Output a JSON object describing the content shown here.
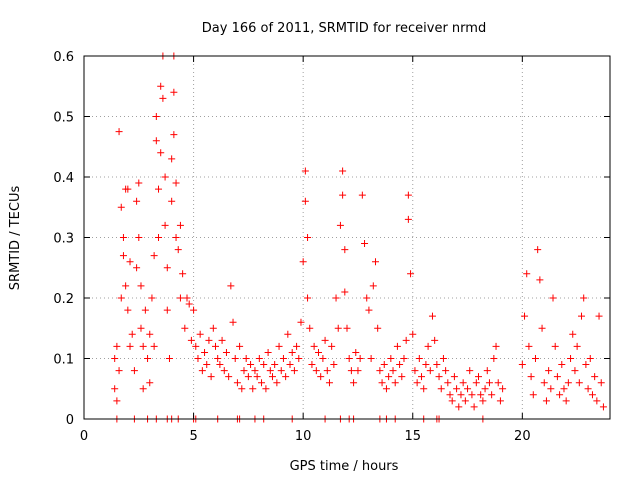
{
  "chart_data": {
    "type": "scatter",
    "title": "Day 166 of 2011, SRMTID for receiver nrmd",
    "xlabel": "GPS time / hours",
    "ylabel": "SRMTID / TECUs",
    "xlim": [
      0,
      24
    ],
    "ylim": [
      0,
      0.6
    ],
    "x_ticks": [
      0,
      5,
      10,
      15,
      20
    ],
    "y_ticks": [
      0,
      0.1,
      0.2,
      0.3,
      0.4,
      0.5,
      0.6
    ],
    "x_tick_labels": [
      "0",
      "5",
      "10",
      "15",
      "20"
    ],
    "y_tick_labels": [
      "0",
      "0.1",
      "0.2",
      "0.3",
      "0.4",
      "0.5",
      "0.6"
    ],
    "grid": true,
    "marker": "+",
    "series_color": "#ff0000",
    "series": [
      {
        "name": "SRMTID",
        "points": [
          [
            1.4,
            0.05
          ],
          [
            1.4,
            0.1
          ],
          [
            1.5,
            0.03
          ],
          [
            1.5,
            0.12
          ],
          [
            1.6,
            0.08
          ],
          [
            1.6,
            0.475
          ],
          [
            1.7,
            0.35
          ],
          [
            1.7,
            0.2
          ],
          [
            1.8,
            0.27
          ],
          [
            1.8,
            0.3
          ],
          [
            1.9,
            0.38
          ],
          [
            1.9,
            0.22
          ],
          [
            2.0,
            0.18
          ],
          [
            2.0,
            0.38
          ],
          [
            2.1,
            0.26
          ],
          [
            2.1,
            0.12
          ],
          [
            2.2,
            0.14
          ],
          [
            2.3,
            0.08
          ],
          [
            2.4,
            0.25
          ],
          [
            2.4,
            0.36
          ],
          [
            2.5,
            0.39
          ],
          [
            2.5,
            0.3
          ],
          [
            2.6,
            0.22
          ],
          [
            2.6,
            0.15
          ],
          [
            2.7,
            0.12
          ],
          [
            2.7,
            0.05
          ],
          [
            2.8,
            0.18
          ],
          [
            2.9,
            0.1
          ],
          [
            3.0,
            0.14
          ],
          [
            3.0,
            0.06
          ],
          [
            3.1,
            0.2
          ],
          [
            3.2,
            0.27
          ],
          [
            3.2,
            0.12
          ],
          [
            3.3,
            0.46
          ],
          [
            3.3,
            0.5
          ],
          [
            3.4,
            0.38
          ],
          [
            3.4,
            0.3
          ],
          [
            3.5,
            0.55
          ],
          [
            3.5,
            0.44
          ],
          [
            3.6,
            0.6
          ],
          [
            3.6,
            0.53
          ],
          [
            3.7,
            0.4
          ],
          [
            3.7,
            0.32
          ],
          [
            3.8,
            0.25
          ],
          [
            3.8,
            0.18
          ],
          [
            3.9,
            0.1
          ],
          [
            4.0,
            0.43
          ],
          [
            4.0,
            0.36
          ],
          [
            4.1,
            0.6
          ],
          [
            4.1,
            0.54
          ],
          [
            4.1,
            0.47
          ],
          [
            4.2,
            0.39
          ],
          [
            4.2,
            0.3
          ],
          [
            4.3,
            0.28
          ],
          [
            4.4,
            0.32
          ],
          [
            4.4,
            0.2
          ],
          [
            4.5,
            0.24
          ],
          [
            4.6,
            0.15
          ],
          [
            4.7,
            0.2
          ],
          [
            4.8,
            0.19
          ],
          [
            4.9,
            0.13
          ],
          [
            5.0,
            0.18
          ],
          [
            5.1,
            0.12
          ],
          [
            5.2,
            0.1
          ],
          [
            5.3,
            0.14
          ],
          [
            5.4,
            0.08
          ],
          [
            5.5,
            0.11
          ],
          [
            5.6,
            0.09
          ],
          [
            5.7,
            0.13
          ],
          [
            5.8,
            0.07
          ],
          [
            5.9,
            0.15
          ],
          [
            6.0,
            0.12
          ],
          [
            6.1,
            0.1
          ],
          [
            6.2,
            0.09
          ],
          [
            6.3,
            0.13
          ],
          [
            6.4,
            0.08
          ],
          [
            6.5,
            0.11
          ],
          [
            6.6,
            0.07
          ],
          [
            6.7,
            0.22
          ],
          [
            6.8,
            0.16
          ],
          [
            6.9,
            0.1
          ],
          [
            7.0,
            0.06
          ],
          [
            7.1,
            0.12
          ],
          [
            7.2,
            0.05
          ],
          [
            7.3,
            0.08
          ],
          [
            7.4,
            0.1
          ],
          [
            7.5,
            0.07
          ],
          [
            7.6,
            0.09
          ],
          [
            7.7,
            0.05
          ],
          [
            7.8,
            0.08
          ],
          [
            7.9,
            0.07
          ],
          [
            8.0,
            0.1
          ],
          [
            8.1,
            0.06
          ],
          [
            8.2,
            0.09
          ],
          [
            8.3,
            0.05
          ],
          [
            8.4,
            0.11
          ],
          [
            8.5,
            0.08
          ],
          [
            8.6,
            0.07
          ],
          [
            8.7,
            0.09
          ],
          [
            8.8,
            0.06
          ],
          [
            8.9,
            0.12
          ],
          [
            9.0,
            0.08
          ],
          [
            9.1,
            0.1
          ],
          [
            9.2,
            0.07
          ],
          [
            9.3,
            0.14
          ],
          [
            9.4,
            0.09
          ],
          [
            9.5,
            0.11
          ],
          [
            9.6,
            0.08
          ],
          [
            9.7,
            0.12
          ],
          [
            9.8,
            0.1
          ],
          [
            9.9,
            0.16
          ],
          [
            10.0,
            0.26
          ],
          [
            10.1,
            0.41
          ],
          [
            10.1,
            0.36
          ],
          [
            10.2,
            0.3
          ],
          [
            10.2,
            0.2
          ],
          [
            10.3,
            0.15
          ],
          [
            10.4,
            0.09
          ],
          [
            10.5,
            0.12
          ],
          [
            10.6,
            0.08
          ],
          [
            10.7,
            0.11
          ],
          [
            10.8,
            0.07
          ],
          [
            10.9,
            0.1
          ],
          [
            11.0,
            0.13
          ],
          [
            11.1,
            0.08
          ],
          [
            11.2,
            0.06
          ],
          [
            11.3,
            0.12
          ],
          [
            11.4,
            0.09
          ],
          [
            11.5,
            0.2
          ],
          [
            11.6,
            0.15
          ],
          [
            11.7,
            0.32
          ],
          [
            11.8,
            0.41
          ],
          [
            11.8,
            0.37
          ],
          [
            11.9,
            0.28
          ],
          [
            11.9,
            0.21
          ],
          [
            12.0,
            0.15
          ],
          [
            12.1,
            0.1
          ],
          [
            12.2,
            0.08
          ],
          [
            12.3,
            0.06
          ],
          [
            12.4,
            0.11
          ],
          [
            12.5,
            0.08
          ],
          [
            12.6,
            0.1
          ],
          [
            12.7,
            0.37
          ],
          [
            12.8,
            0.29
          ],
          [
            12.9,
            0.2
          ],
          [
            13.0,
            0.18
          ],
          [
            13.1,
            0.1
          ],
          [
            13.2,
            0.22
          ],
          [
            13.3,
            0.26
          ],
          [
            13.4,
            0.15
          ],
          [
            13.5,
            0.08
          ],
          [
            13.6,
            0.06
          ],
          [
            13.7,
            0.09
          ],
          [
            13.8,
            0.05
          ],
          [
            13.9,
            0.07
          ],
          [
            14.0,
            0.1
          ],
          [
            14.1,
            0.08
          ],
          [
            14.2,
            0.06
          ],
          [
            14.3,
            0.12
          ],
          [
            14.4,
            0.09
          ],
          [
            14.5,
            0.07
          ],
          [
            14.6,
            0.1
          ],
          [
            14.7,
            0.13
          ],
          [
            14.8,
            0.37
          ],
          [
            14.8,
            0.33
          ],
          [
            14.9,
            0.24
          ],
          [
            15.0,
            0.14
          ],
          [
            15.1,
            0.08
          ],
          [
            15.2,
            0.06
          ],
          [
            15.3,
            0.1
          ],
          [
            15.4,
            0.07
          ],
          [
            15.5,
            0.05
          ],
          [
            15.6,
            0.09
          ],
          [
            15.7,
            0.12
          ],
          [
            15.8,
            0.08
          ],
          [
            15.9,
            0.17
          ],
          [
            16.0,
            0.13
          ],
          [
            16.1,
            0.09
          ],
          [
            16.2,
            0.07
          ],
          [
            16.3,
            0.05
          ],
          [
            16.4,
            0.1
          ],
          [
            16.5,
            0.08
          ],
          [
            16.6,
            0.06
          ],
          [
            16.7,
            0.04
          ],
          [
            16.8,
            0.03
          ],
          [
            16.9,
            0.07
          ],
          [
            17.0,
            0.05
          ],
          [
            17.1,
            0.02
          ],
          [
            17.2,
            0.04
          ],
          [
            17.3,
            0.06
          ],
          [
            17.4,
            0.03
          ],
          [
            17.5,
            0.05
          ],
          [
            17.6,
            0.08
          ],
          [
            17.7,
            0.04
          ],
          [
            17.8,
            0.02
          ],
          [
            17.9,
            0.06
          ],
          [
            18.0,
            0.07
          ],
          [
            18.1,
            0.04
          ],
          [
            18.2,
            0.03
          ],
          [
            18.3,
            0.05
          ],
          [
            18.4,
            0.08
          ],
          [
            18.5,
            0.06
          ],
          [
            18.6,
            0.04
          ],
          [
            18.7,
            0.1
          ],
          [
            18.8,
            0.12
          ],
          [
            18.9,
            0.06
          ],
          [
            19.0,
            0.03
          ],
          [
            19.1,
            0.05
          ],
          [
            20.0,
            0.09
          ],
          [
            20.1,
            0.17
          ],
          [
            20.2,
            0.24
          ],
          [
            20.3,
            0.12
          ],
          [
            20.4,
            0.07
          ],
          [
            20.5,
            0.04
          ],
          [
            20.6,
            0.1
          ],
          [
            20.7,
            0.28
          ],
          [
            20.8,
            0.23
          ],
          [
            20.9,
            0.15
          ],
          [
            21.0,
            0.06
          ],
          [
            21.1,
            0.03
          ],
          [
            21.2,
            0.08
          ],
          [
            21.3,
            0.05
          ],
          [
            21.4,
            0.2
          ],
          [
            21.5,
            0.12
          ],
          [
            21.6,
            0.07
          ],
          [
            21.7,
            0.04
          ],
          [
            21.8,
            0.09
          ],
          [
            21.9,
            0.05
          ],
          [
            22.0,
            0.03
          ],
          [
            22.1,
            0.06
          ],
          [
            22.2,
            0.1
          ],
          [
            22.3,
            0.14
          ],
          [
            22.4,
            0.08
          ],
          [
            22.5,
            0.12
          ],
          [
            22.6,
            0.06
          ],
          [
            22.7,
            0.17
          ],
          [
            22.8,
            0.2
          ],
          [
            22.9,
            0.09
          ],
          [
            23.0,
            0.05
          ],
          [
            23.1,
            0.1
          ],
          [
            23.2,
            0.04
          ],
          [
            23.3,
            0.07
          ],
          [
            23.4,
            0.03
          ],
          [
            23.5,
            0.17
          ],
          [
            23.6,
            0.06
          ],
          [
            23.7,
            0.02
          ]
        ],
        "zero_points": [
          1.5,
          2.3,
          2.9,
          3.3,
          3.8,
          4.0,
          4.3,
          5.0,
          5.1,
          6.1,
          7.0,
          7.1,
          7.8,
          8.2,
          9.5,
          11.0,
          11.7,
          12.1,
          12.3,
          13.5,
          13.8,
          14.2,
          15.5,
          16.1,
          16.2,
          18.2
        ]
      }
    ]
  }
}
